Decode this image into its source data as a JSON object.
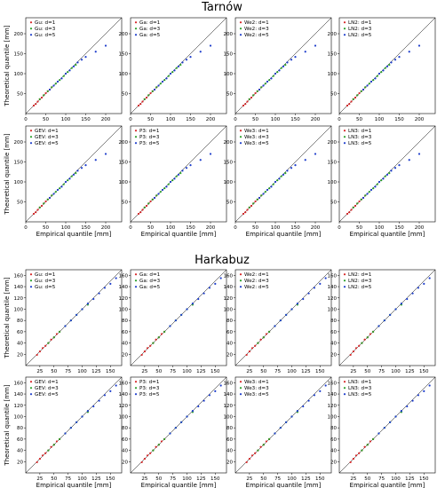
{
  "figure": {
    "groups": [
      {
        "title": "Tarnów"
      },
      {
        "title": "Harkabuz"
      }
    ]
  },
  "colors": {
    "d1": "#d62728",
    "d3": "#2ca02c",
    "d5": "#1f3fcc",
    "axes": "#000000",
    "diagonal": "#000000"
  },
  "chart_data": [
    {
      "type": "scatter",
      "station": "Tarnów",
      "xlabel": "Empirical quantile [mm]",
      "ylabel": "Theoretical quantile [mm]",
      "xlim": [
        0,
        240
      ],
      "ylim": [
        0,
        240
      ],
      "xticks": [
        0,
        50,
        100,
        150,
        200
      ],
      "yticks": [
        50,
        100,
        150,
        200
      ],
      "reference_line": "y = x",
      "panels": [
        {
          "row": 1,
          "col": 1,
          "legend": [
            "Gu: d=1",
            "Gu: d=3",
            "Gu: d=5"
          ]
        },
        {
          "row": 1,
          "col": 2,
          "legend": [
            "Ga: d=1",
            "Ga: d=3",
            "Ga: d=5"
          ]
        },
        {
          "row": 1,
          "col": 3,
          "legend": [
            "We2: d=1",
            "We2: d=3",
            "We2: d=5"
          ]
        },
        {
          "row": 1,
          "col": 4,
          "legend": [
            "LN2: d=1",
            "LN2: d=3",
            "LN2: d=5"
          ]
        },
        {
          "row": 2,
          "col": 1,
          "legend": [
            "GEV: d=1",
            "GEV: d=3",
            "GEV: d=5"
          ]
        },
        {
          "row": 2,
          "col": 2,
          "legend": [
            "P3: d=1",
            "P3: d=3",
            "P3: d=5"
          ]
        },
        {
          "row": 2,
          "col": 3,
          "legend": [
            "We3: d=1",
            "We3: d=3",
            "We3: d=5"
          ]
        },
        {
          "row": 2,
          "col": 4,
          "legend": [
            "LN3: d=1",
            "LN3: d=3",
            "LN3: d=5"
          ]
        }
      ],
      "series": [
        {
          "name": "d=1",
          "x": [
            20,
            25,
            30,
            35,
            40,
            45,
            50,
            55,
            60,
            65
          ],
          "y": [
            20,
            24,
            30,
            36,
            40,
            46,
            51,
            56,
            60,
            66
          ]
        },
        {
          "name": "d=3",
          "x": [
            35,
            45,
            55,
            65,
            75,
            85,
            95,
            105,
            115,
            125
          ],
          "y": [
            36,
            46,
            56,
            66,
            75,
            84,
            94,
            104,
            114,
            122
          ]
        },
        {
          "name": "d=5",
          "x": [
            60,
            70,
            80,
            90,
            100,
            110,
            120,
            130,
            140,
            150,
            175,
            200
          ],
          "y": [
            60,
            70,
            80,
            88,
            100,
            108,
            118,
            128,
            135,
            142,
            155,
            170
          ]
        }
      ]
    },
    {
      "type": "scatter",
      "station": "Harkabuz",
      "xlabel": "Empirical quantile [mm]",
      "ylabel": "Theoretical quantile [mm]",
      "xlim": [
        0,
        170
      ],
      "ylim": [
        0,
        170
      ],
      "xticks": [
        25,
        50,
        75,
        100,
        125,
        150
      ],
      "yticks": [
        20,
        40,
        60,
        80,
        100,
        120,
        140,
        160
      ],
      "reference_line": "y = x",
      "panels": [
        {
          "row": 1,
          "col": 1,
          "legend": [
            "Gu: d=1",
            "Gu: d=3",
            "Gu: d=5"
          ]
        },
        {
          "row": 1,
          "col": 2,
          "legend": [
            "Ga: d=1",
            "Ga: d=3",
            "Ga: d=5"
          ]
        },
        {
          "row": 1,
          "col": 3,
          "legend": [
            "We2: d=1",
            "We2: d=3",
            "We2: d=5"
          ]
        },
        {
          "row": 1,
          "col": 4,
          "legend": [
            "LN2: d=1",
            "LN2: d=3",
            "LN2: d=5"
          ]
        },
        {
          "row": 2,
          "col": 1,
          "legend": [
            "GEV: d=1",
            "GEV: d=3",
            "GEV: d=5"
          ]
        },
        {
          "row": 2,
          "col": 2,
          "legend": [
            "P3: d=1",
            "P3: d=3",
            "P3: d=5"
          ]
        },
        {
          "row": 2,
          "col": 3,
          "legend": [
            "We3: d=1",
            "We3: d=3",
            "We3: d=5"
          ]
        },
        {
          "row": 2,
          "col": 4,
          "legend": [
            "LN3: d=1",
            "LN3: d=3",
            "LN3: d=5"
          ]
        }
      ],
      "series": [
        {
          "name": "d=1",
          "x": [
            20,
            25,
            30,
            35,
            40,
            45,
            50,
            55,
            60
          ],
          "y": [
            19,
            25,
            31,
            35,
            40,
            46,
            50,
            56,
            60
          ]
        },
        {
          "name": "d=3",
          "x": [
            40,
            50,
            60,
            70,
            80,
            90,
            100,
            110
          ],
          "y": [
            40,
            50,
            60,
            70,
            80,
            90,
            100,
            108
          ]
        },
        {
          "name": "d=5",
          "x": [
            70,
            80,
            90,
            100,
            110,
            120,
            130,
            140,
            150,
            160
          ],
          "y": [
            70,
            80,
            90,
            100,
            110,
            118,
            128,
            138,
            145,
            155
          ]
        }
      ]
    }
  ]
}
